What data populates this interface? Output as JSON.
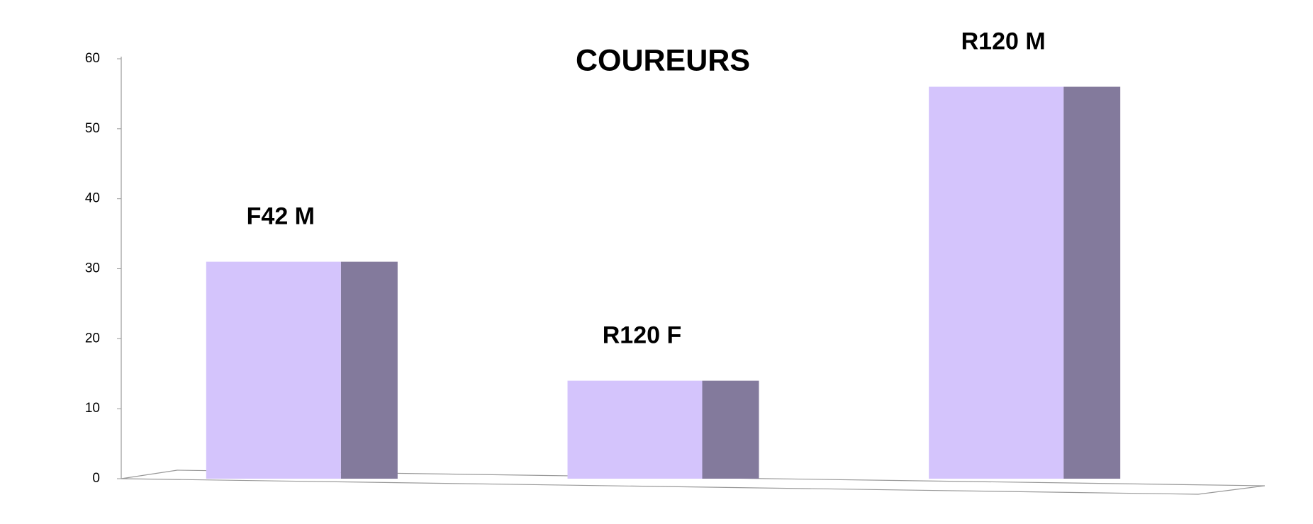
{
  "chart_data": {
    "type": "bar3d",
    "title": "COUREURS",
    "categories": [
      "F42 M",
      "R120 F",
      "R120 M"
    ],
    "values": [
      31,
      14,
      56
    ],
    "color": "#d4c4fc",
    "ylim": [
      0,
      60
    ],
    "yticks": [
      0,
      10,
      20,
      30,
      40,
      50,
      60
    ],
    "grid": false
  }
}
